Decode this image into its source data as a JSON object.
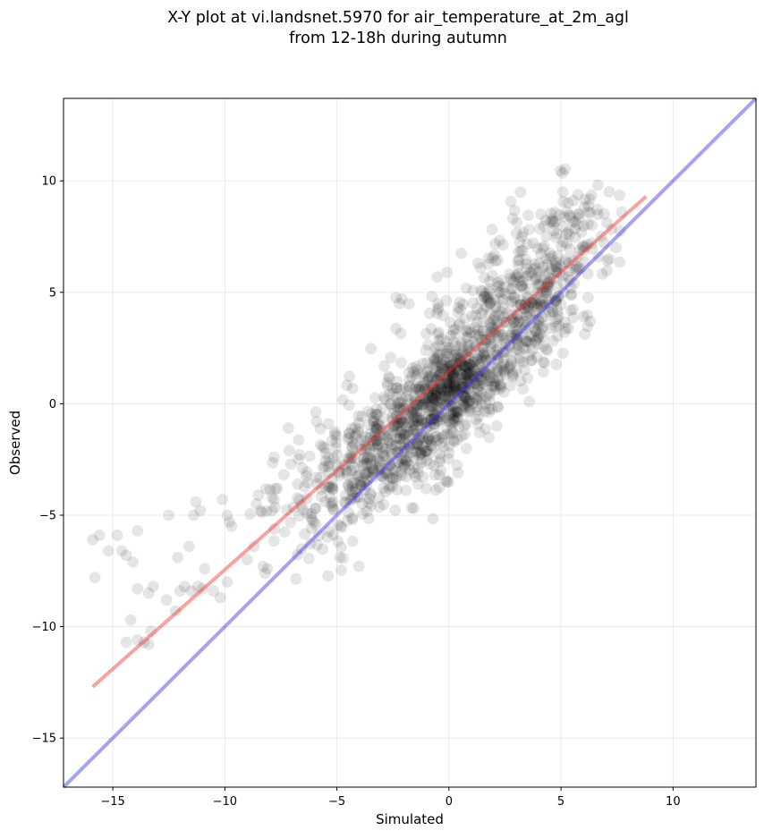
{
  "chart_data": {
    "type": "scatter",
    "title_lines": [
      "X-Y plot at vi.landsnet.5970 for air_temperature_at_2m_agl",
      "from 12-18h during autumn"
    ],
    "xlabel": "Simulated",
    "ylabel": "Observed",
    "xlim": [
      -17.2,
      13.7
    ],
    "ylim": [
      -17.2,
      13.7
    ],
    "x_ticks": [
      -15,
      -10,
      -5,
      0,
      5,
      10
    ],
    "y_ticks": [
      -15,
      -10,
      -5,
      0,
      5,
      10
    ],
    "x_tick_labels": [
      "−15",
      "−10",
      "−5",
      "0",
      "5",
      "10"
    ],
    "y_tick_labels": [
      "−15",
      "−10",
      "−5",
      "0",
      "5",
      "10"
    ],
    "grid": true,
    "point_color": "#000000",
    "point_opacity": 0.1,
    "points_outlier": [
      [
        -15.9,
        -6.1
      ],
      [
        -15.8,
        -7.8
      ],
      [
        -15.6,
        -5.9
      ],
      [
        -15.2,
        -6.6
      ],
      [
        -14.8,
        -5.9
      ],
      [
        -14.6,
        -6.6
      ],
      [
        -14.4,
        -6.8
      ],
      [
        -14.1,
        -7.1
      ],
      [
        -13.9,
        -5.7
      ],
      [
        -13.9,
        -8.3
      ],
      [
        -13.4,
        -8.5
      ],
      [
        -13.2,
        -8.2
      ],
      [
        -14.4,
        -10.7
      ],
      [
        -14.2,
        -9.7
      ],
      [
        -13.9,
        -10.6
      ],
      [
        -13.6,
        -10.7
      ],
      [
        -13.4,
        -10.8
      ],
      [
        -13.3,
        -10.2
      ],
      [
        -12.6,
        -8.8
      ],
      [
        -12.5,
        -5.0
      ],
      [
        -12.2,
        -9.3
      ],
      [
        -12.1,
        -6.9
      ],
      [
        -12.0,
        -8.4
      ],
      [
        -11.8,
        -8.2
      ],
      [
        -11.6,
        -6.4
      ],
      [
        -11.5,
        -8.4
      ],
      [
        -11.4,
        -5.0
      ],
      [
        -11.3,
        -4.4
      ],
      [
        -11.1,
        -4.8
      ],
      [
        -11.2,
        -8.2
      ],
      [
        -11.0,
        -8.3
      ],
      [
        -10.9,
        -7.4
      ],
      [
        -10.5,
        -8.4
      ],
      [
        -10.2,
        -8.7
      ],
      [
        -10.1,
        -4.3
      ],
      [
        -9.9,
        -5.0
      ],
      [
        -9.8,
        -5.3
      ],
      [
        -9.7,
        -5.5
      ],
      [
        -9.9,
        -8.0
      ],
      [
        -9.0,
        -7.0
      ],
      [
        -8.7,
        -6.4
      ],
      [
        -8.5,
        -4.1
      ],
      [
        -8.4,
        -4.8
      ],
      [
        -8.2,
        -7.6
      ],
      [
        -8.1,
        -7.4
      ],
      [
        -8.3,
        -7.3
      ],
      [
        -7.9,
        -4.2
      ],
      [
        -7.8,
        -4.3
      ],
      [
        -7.9,
        -4.8
      ],
      [
        -7.8,
        -2.4
      ]
    ],
    "regression_line": {
      "x": [
        -15.9,
        8.8
      ],
      "y": [
        -12.7,
        9.3
      ],
      "color": "#f03030",
      "opacity": 0.45
    },
    "identity_line": {
      "x": [
        -17.2,
        13.7
      ],
      "y": [
        -17.2,
        13.7
      ],
      "color": "#3030ee",
      "opacity": 0.45
    }
  }
}
